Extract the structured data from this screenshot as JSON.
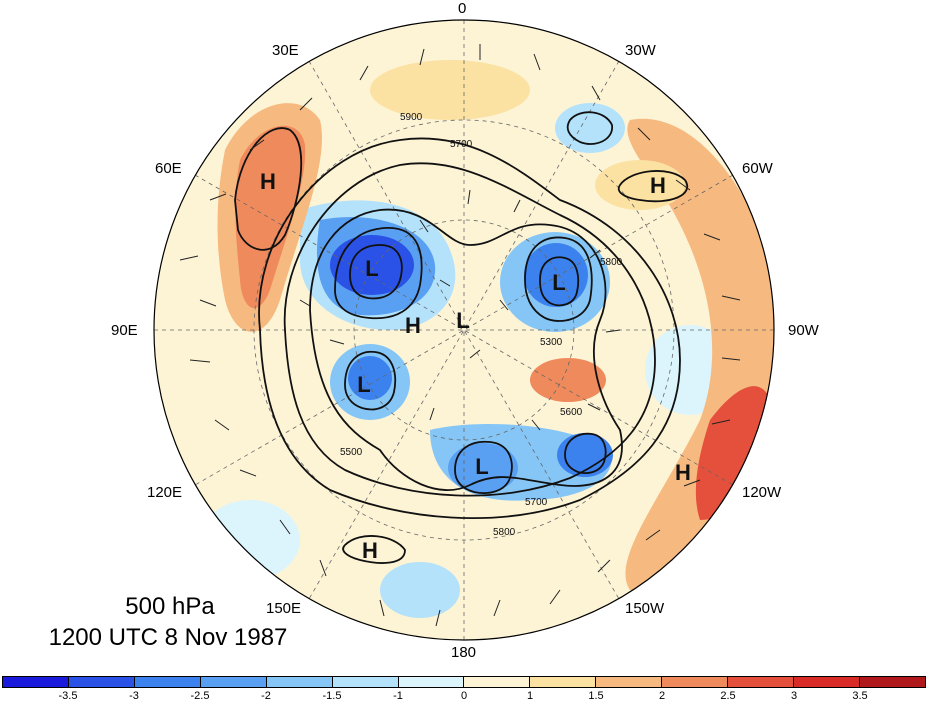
{
  "map": {
    "level": "500 hPa",
    "valid_time": "1200 UTC 8 Nov 1987",
    "longitude_labels": [
      "0",
      "30W",
      "60W",
      "90W",
      "120W",
      "150W",
      "180",
      "150E",
      "120E",
      "90E",
      "60E",
      "30E"
    ],
    "contour_labels": [
      "5300",
      "5500",
      "5600",
      "5700",
      "5800",
      "5900"
    ],
    "pressure_centers": [
      {
        "type": "H",
        "location": "western Russia / 60E"
      },
      {
        "type": "H",
        "location": "north Atlantic / 60W"
      },
      {
        "type": "H",
        "location": "west of North America / 120W"
      },
      {
        "type": "H",
        "location": "northwest Pacific / 150E"
      },
      {
        "type": "H",
        "location": "Siberia / 90E"
      },
      {
        "type": "L",
        "location": "northern Siberia"
      },
      {
        "type": "L",
        "location": "Hudson Bay / Labrador"
      },
      {
        "type": "L",
        "location": "near pole"
      },
      {
        "type": "L",
        "location": "east Siberia"
      },
      {
        "type": "L",
        "location": "Bering Sea / Alaska"
      }
    ],
    "colorbar": {
      "ticks": [
        "-3.5",
        "-3",
        "-2.5",
        "-2",
        "-1.5",
        "-1",
        "0",
        "1",
        "1.5",
        "2",
        "2.5",
        "3",
        "3.5"
      ],
      "colors": [
        "#1a1adc",
        "#2a52e6",
        "#3c82ee",
        "#5aa0f2",
        "#86c6f6",
        "#b4e2fa",
        "#dcf4fc",
        "#fdf4d6",
        "#fbe1a2",
        "#f6ba80",
        "#ee8a5c",
        "#e4503c",
        "#d82a26",
        "#b0181c"
      ]
    }
  }
}
